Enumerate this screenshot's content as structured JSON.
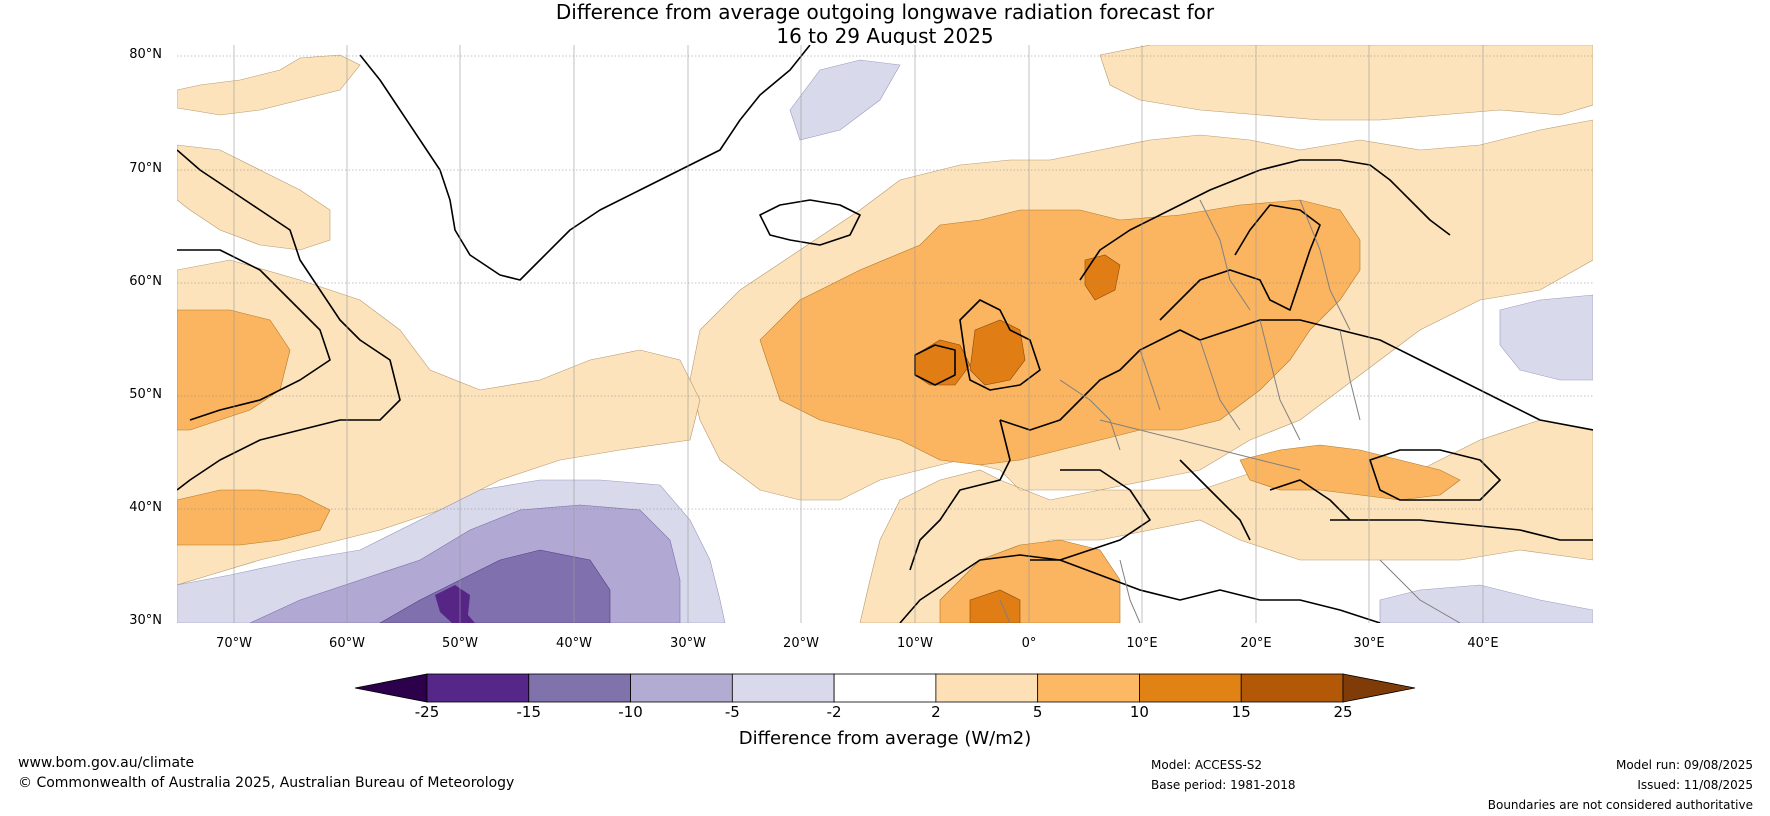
{
  "title": {
    "line1": "Difference from average outgoing longwave radiation forecast for",
    "line2": "16 to 29 August 2025"
  },
  "map": {
    "lat_labels": [
      "80°N",
      "70°N",
      "60°N",
      "50°N",
      "40°N",
      "30°N"
    ],
    "lon_labels": [
      "70°W",
      "60°W",
      "50°W",
      "40°W",
      "30°W",
      "20°W",
      "10°W",
      "0°",
      "10°E",
      "20°E",
      "30°E",
      "40°E"
    ],
    "colors": {
      "ocean_neutral": "#ffffff",
      "pos_2_5": "#fde3bb",
      "pos_5_10": "#fbb45f",
      "pos_10_15": "#e07d15",
      "neg_2_5": "#d9d9ec",
      "neg_5_10": "#b1a9d3",
      "neg_10_15": "#8170ae",
      "neg_15_25": "#572586",
      "coast": "#000000",
      "borders": "#808080"
    }
  },
  "colorbar": {
    "ticks": [
      "-25",
      "-15",
      "-10",
      "-5",
      "-2",
      "2",
      "5",
      "10",
      "15",
      "25"
    ],
    "colors": [
      "#2d004b",
      "#542788",
      "#8073ac",
      "#b2abd2",
      "#d8daeb",
      "#ffffff",
      "#fee0b6",
      "#fdb863",
      "#e08214",
      "#b35806",
      "#7f3b08"
    ],
    "label": "Difference from average (W/m2)"
  },
  "footer": {
    "url": "www.bom.gov.au/climate",
    "copyright": "© Commonwealth of Australia 2025, Australian Bureau of Meteorology",
    "model": "Model: ACCESS-S2",
    "base_period": "Base period: 1981-2018",
    "model_run": "Model run: 09/08/2025",
    "issued": "Issued: 11/08/2025",
    "disclaimer": "Boundaries are not considered authoritative"
  }
}
